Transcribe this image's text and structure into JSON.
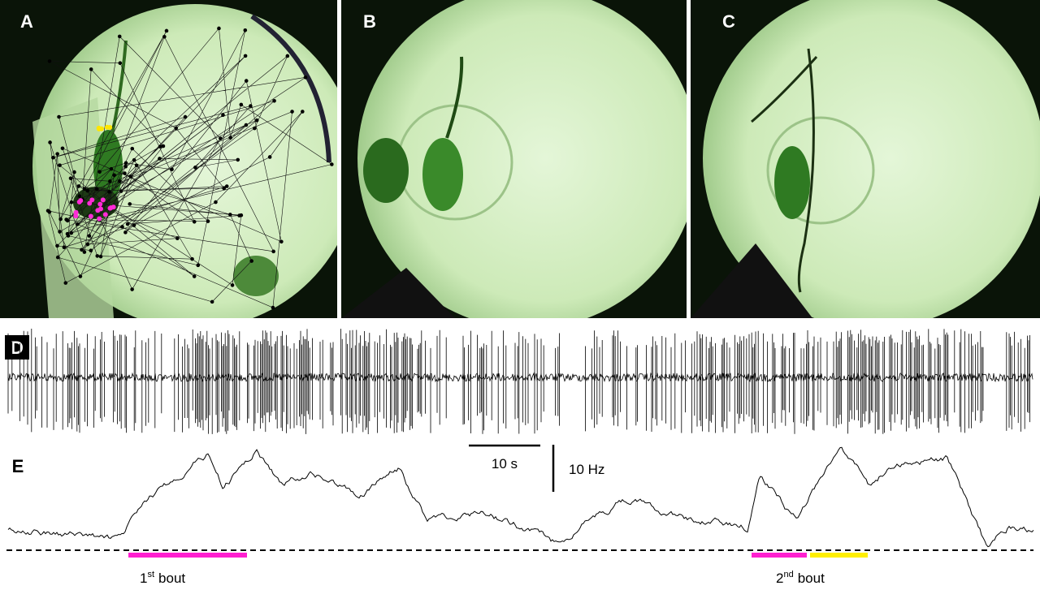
{
  "panels": {
    "a": "A",
    "b": "B",
    "c": "C",
    "d": "D",
    "e": "E"
  },
  "scale_bars": {
    "time": "10 s",
    "rate": "10 Hz"
  },
  "bouts": [
    {
      "ordinal": "1",
      "suffix": "st",
      "label": "bout"
    },
    {
      "ordinal": "2",
      "suffix": "nd",
      "label": "bout"
    }
  ]
}
